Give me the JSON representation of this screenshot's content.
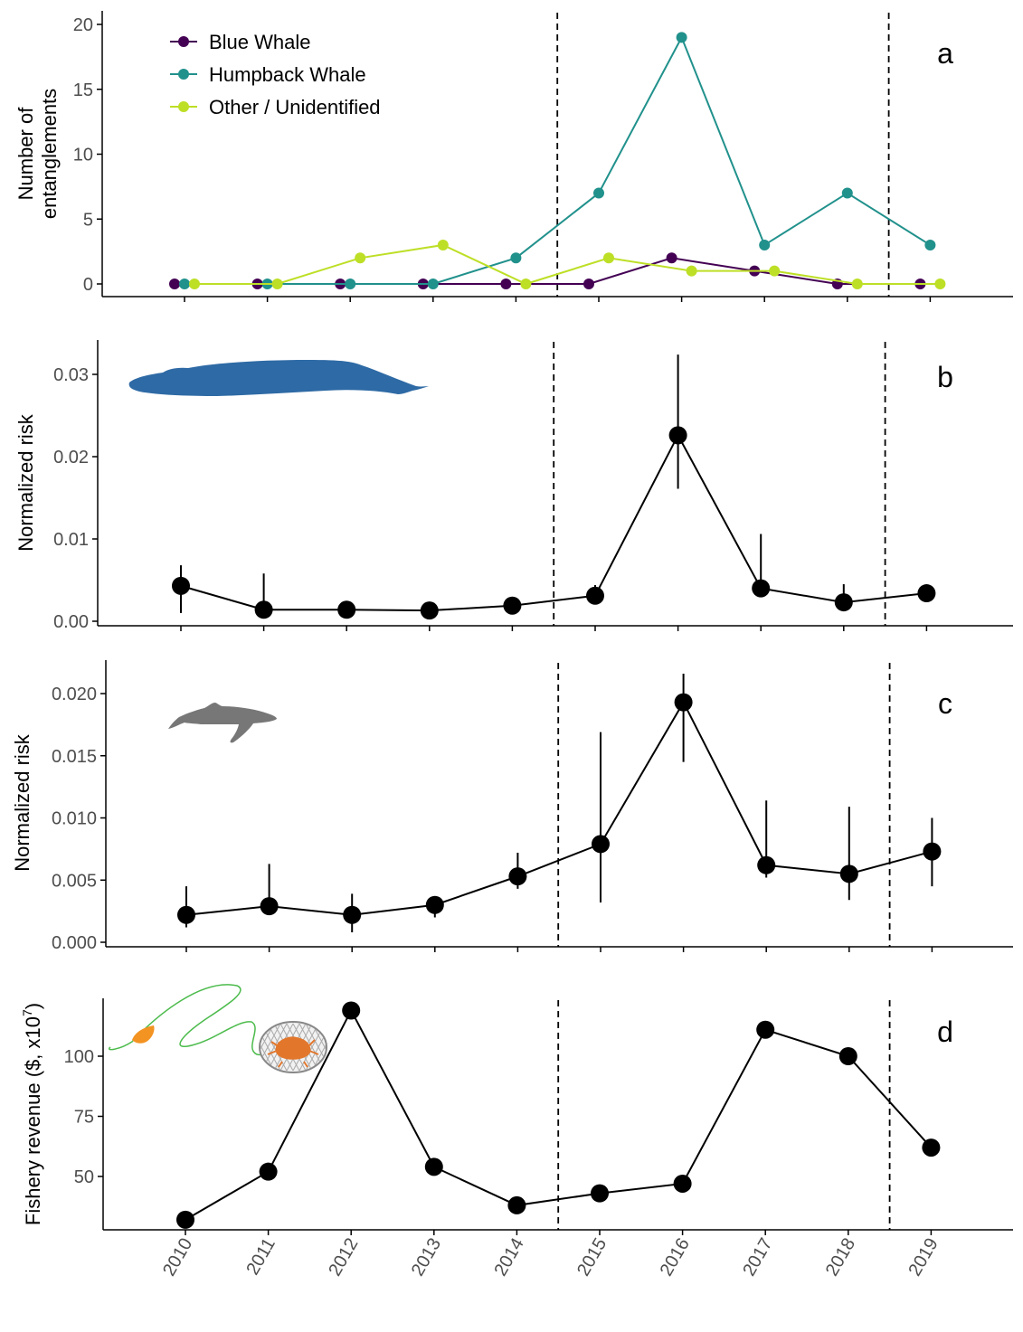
{
  "x_categories": [
    "2010",
    "2011",
    "2012",
    "2013",
    "2014",
    "2015",
    "2016",
    "2017",
    "2018",
    "2019"
  ],
  "colors": {
    "blue_whale": "#440154",
    "humpback_whale": "#21918c",
    "other_unidentified": "#bddf26",
    "points": "#000000",
    "blue_whale_silhouette": "#2e6aa5",
    "humpback_silhouette": "#777777",
    "buoy": "#f39322",
    "line_rope": "#4cbb4c",
    "crab": "#e2772c"
  },
  "chart_data": [
    {
      "panel": "a",
      "type": "line",
      "ylabel_lines": [
        "Number of",
        "entanglements"
      ],
      "ylim": [
        0,
        20
      ],
      "yticks": [
        "0",
        "5",
        "10",
        "15",
        "20"
      ],
      "dashed_lines_between": [
        [
          "2014",
          "2015"
        ],
        [
          "2018",
          "2019"
        ]
      ],
      "legend_position": "top-left",
      "series": [
        {
          "name": "Blue Whale",
          "values": [
            0,
            0,
            0,
            0,
            0,
            0,
            2,
            1,
            0,
            0
          ]
        },
        {
          "name": "Humpback Whale",
          "values": [
            0,
            0,
            0,
            0,
            2,
            7,
            19,
            3,
            7,
            3
          ]
        },
        {
          "name": "Other / Unidentified",
          "values": [
            0,
            0,
            2,
            3,
            0,
            2,
            1,
            1,
            0,
            0
          ]
        }
      ]
    },
    {
      "panel": "b",
      "type": "line",
      "ylabel": "Normalized risk",
      "ylim": [
        0,
        0.034
      ],
      "yticks": [
        "0.00",
        "0.01",
        "0.02",
        "0.03"
      ],
      "values": [
        0.0043,
        0.0014,
        0.0014,
        0.0013,
        0.0019,
        0.0031,
        0.0226,
        0.004,
        0.0023,
        0.0034
      ],
      "error_low": [
        0.001,
        0.0012,
        0.0012,
        0.0011,
        0.0015,
        0.0025,
        0.0161,
        0.003,
        0.0019,
        0.003
      ],
      "error_high": [
        0.0068,
        0.0058,
        0.0018,
        0.0017,
        0.0023,
        0.0044,
        0.0324,
        0.0106,
        0.0045,
        0.0038
      ]
    },
    {
      "panel": "c",
      "type": "line",
      "ylabel": "Normalized risk",
      "ylim": [
        0,
        0.0228
      ],
      "yticks": [
        "0.000",
        "0.005",
        "0.010",
        "0.015",
        "0.020"
      ],
      "values": [
        0.0022,
        0.0029,
        0.0022,
        0.003,
        0.0053,
        0.0079,
        0.0193,
        0.0062,
        0.0055,
        0.0073
      ],
      "error_low": [
        0.0012,
        0.0022,
        0.0008,
        0.002,
        0.0043,
        0.0032,
        0.0145,
        0.0052,
        0.0034,
        0.0045
      ],
      "error_high": [
        0.0045,
        0.0063,
        0.0039,
        0.0035,
        0.0072,
        0.0169,
        0.0216,
        0.0114,
        0.0109,
        0.01
      ]
    },
    {
      "panel": "d",
      "type": "line",
      "ylabel_main": "Fishery revenue ($, x10",
      "ylabel_sup": "7",
      "ylabel_end": ")",
      "ylim": [
        26,
        125
      ],
      "yticks": [
        "50",
        "75",
        "100"
      ],
      "values": [
        32,
        52,
        119,
        54,
        38,
        43,
        47,
        111,
        100,
        62
      ]
    }
  ]
}
